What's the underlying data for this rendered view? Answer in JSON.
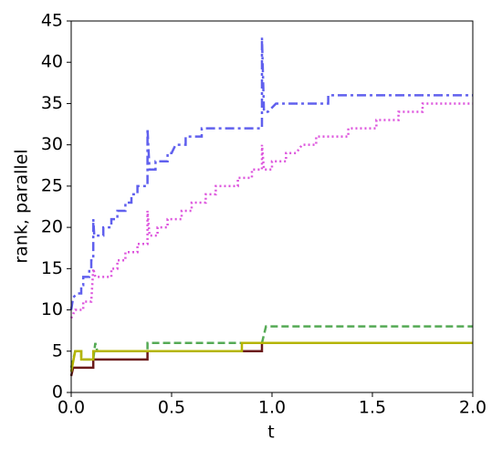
{
  "chart_data": {
    "type": "line",
    "xlabel": "t",
    "ylabel": "rank, parallel",
    "xlim": [
      0,
      2
    ],
    "ylim": [
      0,
      45
    ],
    "xticks": [
      {
        "value": 0,
        "label": "0.0"
      },
      0.5,
      {
        "value": 1,
        "label": "1.0"
      },
      1.5,
      {
        "value": 2,
        "label": "2.0"
      }
    ],
    "yticks": [
      0,
      5,
      10,
      15,
      20,
      25,
      30,
      35,
      40,
      45
    ],
    "series": [
      {
        "color": "#6060ee",
        "dash": "10,4,3,4",
        "x": [
          0,
          0.01,
          0.03,
          0.05,
          0.05,
          0.06,
          0.06,
          0.09,
          0.09,
          0.1,
          0.1,
          0.11,
          0.11,
          0.115,
          0.16,
          0.16,
          0.2,
          0.2,
          0.23,
          0.23,
          0.27,
          0.27,
          0.3,
          0.3,
          0.33,
          0.33,
          0.38,
          0.38,
          0.39,
          0.42,
          0.42,
          0.48,
          0.48,
          0.5,
          0.52,
          0.57,
          0.57,
          0.65,
          0.65,
          0.95,
          0.95,
          0.96,
          0.98,
          1.02,
          1.28,
          1.28,
          2
        ],
        "values": [
          10,
          11.5,
          12,
          12,
          13,
          13,
          14,
          14,
          15,
          15,
          16,
          16,
          21,
          19,
          19,
          20,
          20,
          21,
          21,
          22,
          22,
          23,
          23,
          24,
          24,
          25,
          25,
          32,
          27,
          27,
          28,
          28,
          29,
          29,
          30,
          30,
          31,
          31,
          32,
          32,
          43,
          34,
          34,
          35,
          35,
          36,
          36
        ]
      },
      {
        "color": "#dd55dd",
        "dash": "2,3",
        "x": [
          0,
          0.02,
          0.06,
          0.06,
          0.1,
          0.11,
          0.12,
          0.2,
          0.2,
          0.23,
          0.23,
          0.27,
          0.27,
          0.33,
          0.33,
          0.38,
          0.38,
          0.39,
          0.43,
          0.43,
          0.48,
          0.48,
          0.55,
          0.55,
          0.6,
          0.6,
          0.67,
          0.67,
          0.72,
          0.72,
          0.83,
          0.83,
          0.9,
          0.9,
          0.95,
          0.95,
          0.96,
          1.0,
          1.0,
          1.07,
          1.07,
          1.12,
          1.15,
          1.22,
          1.22,
          1.38,
          1.38,
          1.52,
          1.52,
          1.63,
          1.63,
          1.75,
          1.75,
          2
        ],
        "values": [
          9,
          10,
          10,
          11,
          11,
          15,
          14,
          14,
          15,
          15,
          16,
          16,
          17,
          17,
          18,
          18,
          22,
          19,
          19,
          20,
          20,
          21,
          21,
          22,
          22,
          23,
          23,
          24,
          24,
          25,
          25,
          26,
          26,
          27,
          27,
          30,
          27,
          27,
          28,
          28,
          29,
          29,
          30,
          30,
          31,
          31,
          32,
          32,
          33,
          33,
          34,
          34,
          35,
          35
        ]
      },
      {
        "color": "#55aa55",
        "dash": "8,4",
        "x": [
          0,
          0.02,
          0.05,
          0.05,
          0.11,
          0.12,
          0.13,
          0.38,
          0.38,
          0.95,
          0.97,
          2
        ],
        "values": [
          3,
          5,
          5,
          4,
          4,
          6,
          5,
          5,
          6,
          6,
          8,
          8
        ]
      },
      {
        "color": "#6b1a1a",
        "dash": "",
        "x": [
          0,
          0.01,
          0.11,
          0.11,
          0.38,
          0.38,
          0.95,
          0.95,
          2
        ],
        "values": [
          2,
          3,
          3,
          4,
          4,
          5,
          5,
          6,
          6
        ]
      },
      {
        "color": "#b5b500",
        "dash": "",
        "x": [
          0,
          0.02,
          0.05,
          0.05,
          0.11,
          0.11,
          0.85,
          0.85,
          2
        ],
        "values": [
          2.5,
          5,
          5,
          4,
          4,
          5,
          5,
          6,
          6
        ]
      }
    ]
  }
}
